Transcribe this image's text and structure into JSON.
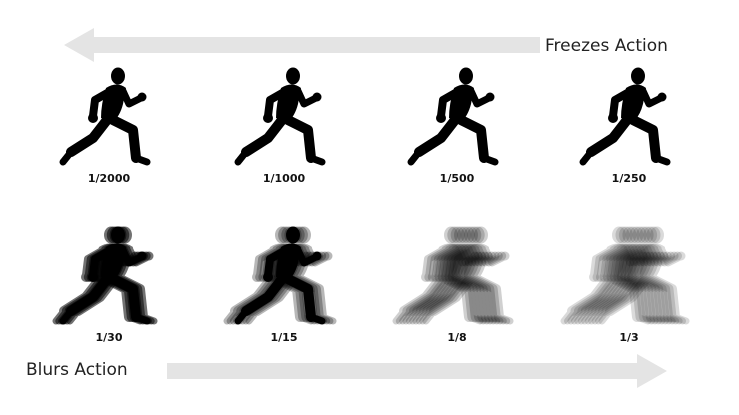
{
  "top_arrow": {
    "label": "Freezes Action",
    "direction": "left"
  },
  "bottom_arrow": {
    "label": "Blurs Action",
    "direction": "right"
  },
  "arrow_color": "#e4e4e4",
  "figure_color": "#000000",
  "icon": "running-man-silhouette-icon",
  "rows": [
    {
      "name": "sharp",
      "items": [
        {
          "label": "1/2000",
          "blur_level": 0
        },
        {
          "label": "1/1000",
          "blur_level": 0
        },
        {
          "label": "1/500",
          "blur_level": 0
        },
        {
          "label": "1/250",
          "blur_level": 0
        }
      ]
    },
    {
      "name": "blurred",
      "items": [
        {
          "label": "1/30",
          "blur_level": 1
        },
        {
          "label": "1/15",
          "blur_level": 2
        },
        {
          "label": "1/8",
          "blur_level": 3
        },
        {
          "label": "1/3",
          "blur_level": 4
        }
      ]
    }
  ]
}
